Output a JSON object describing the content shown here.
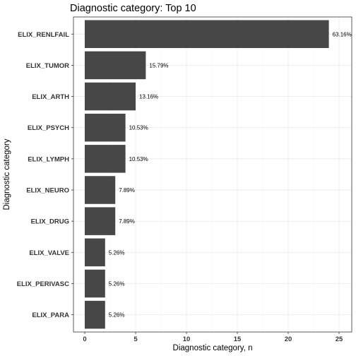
{
  "chart_data": {
    "type": "bar",
    "orientation": "horizontal",
    "title": "Diagnostic category: Top 10",
    "xlabel": "Diagnostic category, n",
    "ylabel": "Diagnostic category",
    "xlim": [
      0,
      25
    ],
    "xticks": [
      0,
      5,
      10,
      15,
      20,
      25
    ],
    "xtick_labels": [
      "0",
      "5",
      "10",
      "15",
      "20",
      "25"
    ],
    "grid": true,
    "categories": [
      "ELIX_RENLFAIL",
      "ELIX_TUMOR",
      "ELIX_ARTH",
      "ELIX_PSYCH",
      "ELIX_LYMPH",
      "ELIX_NEURO",
      "ELIX_DRUG",
      "ELIX_VALVE",
      "ELIX_PERIVASC",
      "ELIX_PARA"
    ],
    "values": [
      24,
      6,
      5,
      4,
      4,
      3,
      3,
      2,
      2,
      2
    ],
    "labels": [
      "63.16%",
      "15.79%",
      "13.16%",
      "10.53%",
      "10.53%",
      "7.89%",
      "7.89%",
      "5.26%",
      "5.26%",
      "5.26%"
    ],
    "bar_color": "#474747"
  }
}
